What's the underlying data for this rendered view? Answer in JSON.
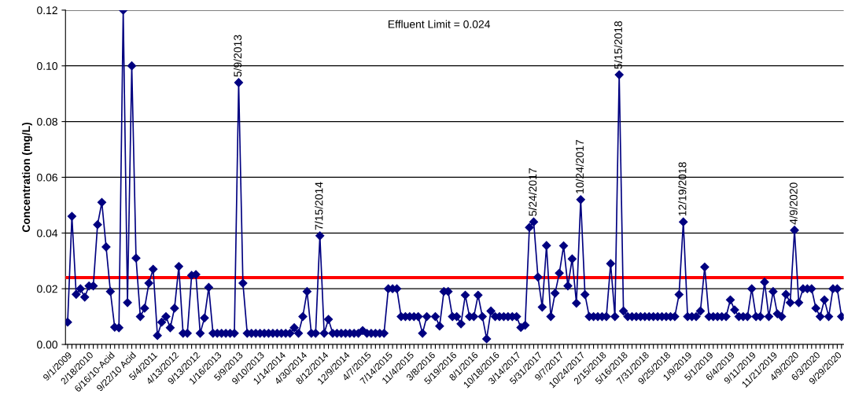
{
  "chart_data": {
    "type": "line",
    "ylabel": "Concentration (mg/L)",
    "categories": [
      "9/1/2009",
      null,
      null,
      null,
      null,
      "2/18/2010",
      null,
      null,
      null,
      null,
      "6/16/10-Acid",
      null,
      null,
      null,
      null,
      "9/22/10 Acid",
      null,
      null,
      null,
      null,
      "5/4/2011",
      null,
      null,
      null,
      null,
      "4/13/2012",
      null,
      null,
      null,
      null,
      "9/13/2012",
      null,
      null,
      null,
      null,
      "1/16/2013",
      null,
      null,
      null,
      null,
      "5/9/2013",
      null,
      null,
      null,
      null,
      "9/10/2013",
      null,
      null,
      null,
      null,
      "1/14/2014",
      null,
      null,
      null,
      null,
      "4/30/2014",
      null,
      null,
      null,
      null,
      "8/12/2014",
      null,
      null,
      null,
      null,
      "12/9/2014",
      null,
      null,
      null,
      null,
      "4/7/2015",
      null,
      null,
      null,
      null,
      "7/14/2015",
      null,
      null,
      null,
      null,
      "11/4/2015",
      null,
      null,
      null,
      null,
      "3/8/2016",
      null,
      null,
      null,
      null,
      "5/19/2016",
      null,
      null,
      null,
      null,
      "8/1/2016",
      null,
      null,
      null,
      null,
      "10/18/2016",
      null,
      null,
      null,
      null,
      "3/14/2017",
      null,
      null,
      null,
      null,
      "5/31/2017",
      null,
      null,
      null,
      null,
      "9/7/2017",
      null,
      null,
      null,
      null,
      "10/24/2017",
      null,
      null,
      null,
      null,
      "2/15/2018",
      null,
      null,
      null,
      null,
      "5/16/2018",
      null,
      null,
      null,
      null,
      "7/31/2018",
      null,
      null,
      null,
      null,
      "9/25/2018",
      null,
      null,
      null,
      null,
      "1/9/2019",
      null,
      null,
      null,
      null,
      "5/1/2019",
      null,
      null,
      null,
      null,
      "6/4/2019",
      null,
      null,
      null,
      null,
      "9/11/2019",
      null,
      null,
      null,
      null,
      "11/21/2019",
      null,
      null,
      null,
      null,
      "4/9/2020",
      null,
      null,
      null,
      null,
      "6/3/2020",
      null,
      null,
      null,
      null,
      "9/29/2020",
      null
    ],
    "series": [
      {
        "color": "#000080",
        "values": [
          0.008,
          0.046,
          0.018,
          0.02,
          0.017,
          0.021,
          0.021,
          0.043,
          0.051,
          0.035,
          0.019,
          0.0062,
          0.006,
          0.12,
          0.015,
          0.1,
          0.031,
          0.01,
          0.013,
          0.022,
          0.027,
          0.0032,
          0.008,
          0.01,
          0.006,
          0.013,
          0.028,
          0.004,
          0.004,
          0.0248,
          0.0251,
          0.004,
          0.0095,
          0.0205,
          0.004,
          0.004,
          0.004,
          0.004,
          0.004,
          0.004,
          0.094,
          0.022,
          0.004,
          0.004,
          0.004,
          0.004,
          0.004,
          0.004,
          0.004,
          0.004,
          0.004,
          0.004,
          0.004,
          0.006,
          0.004,
          0.01,
          0.019,
          0.004,
          0.004,
          0.039,
          0.004,
          0.009,
          0.004,
          0.004,
          0.004,
          0.004,
          0.004,
          0.004,
          0.004,
          0.005,
          0.004,
          0.004,
          0.004,
          0.004,
          0.004,
          0.02,
          0.02,
          0.02,
          0.01,
          0.01,
          0.01,
          0.01,
          0.01,
          0.004,
          0.01,
          null,
          0.01,
          0.0066,
          0.019,
          0.019,
          0.01,
          0.01,
          0.0074,
          0.0177,
          0.01,
          0.01,
          0.0177,
          0.01,
          0.002,
          0.012,
          0.01,
          0.01,
          0.01,
          0.01,
          0.01,
          0.01,
          0.0061,
          0.0069,
          0.042,
          0.044,
          0.0242,
          0.0134,
          0.0355,
          0.01,
          0.0184,
          0.0256,
          0.0354,
          0.021,
          0.0307,
          0.0148,
          0.052,
          0.0179,
          0.01,
          0.01,
          0.01,
          0.01,
          0.01,
          0.029,
          0.01,
          0.0968,
          0.012,
          0.01,
          0.01,
          0.01,
          0.01,
          0.01,
          0.01,
          0.01,
          0.01,
          0.01,
          0.01,
          0.01,
          0.01,
          0.0179,
          0.044,
          0.01,
          0.01,
          0.01,
          0.012,
          0.0278,
          0.01,
          0.01,
          0.01,
          0.01,
          0.01,
          0.016,
          0.0124,
          0.01,
          0.01,
          0.01,
          0.02,
          0.01,
          0.01,
          0.0224,
          0.01,
          0.019,
          0.011,
          0.01,
          0.018,
          0.015,
          0.041,
          0.015,
          0.02,
          0.02,
          0.02,
          0.013,
          0.01,
          0.016,
          0.01,
          0.02,
          0.02,
          0.01
        ]
      }
    ],
    "ylim": [
      0,
      0.12
    ],
    "yticks": [
      {
        "value": 0,
        "label": "0.00"
      },
      {
        "value": 0.02,
        "label": "0.02"
      },
      {
        "value": 0.04,
        "label": "0.04"
      },
      {
        "value": 0.06,
        "label": "0.06"
      },
      {
        "value": 0.08,
        "label": "0.08"
      },
      {
        "value": 0.1,
        "label": "0.10"
      },
      {
        "value": 0.12,
        "label": "0.12"
      }
    ],
    "grid": "y",
    "marker": "diamond",
    "line_style": "solid",
    "ref_lines": [
      {
        "axis": "y",
        "value": 0.024,
        "color": "#ff0000"
      }
    ],
    "annotations": [
      "Effluent Limit = 0.024",
      {
        "text": "5/9/2013",
        "y": 0.094
      },
      {
        "text": "7/15/2014",
        "y": 0.039
      },
      {
        "text": "5/24/2017",
        "y": 0.044
      },
      {
        "text": "10/24/2017",
        "y": 0.052
      },
      {
        "text": "5/15/2018",
        "y": 0.0968
      },
      {
        "text": "12/19/2018",
        "y": 0.044
      },
      {
        "text": "4/9/2020",
        "y": 0.041
      }
    ]
  }
}
